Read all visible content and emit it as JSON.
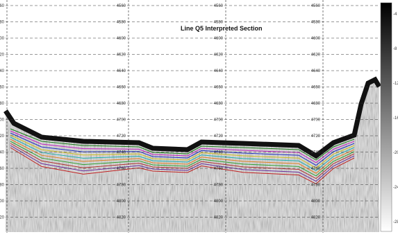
{
  "title": "Line Q5 Interpreted Section",
  "depth_labels": [
    "4560",
    "4580",
    "4600",
    "4620",
    "4640",
    "4660",
    "4680",
    "4700",
    "4720",
    "4740",
    "4760",
    "4780",
    "4800",
    "4820"
  ],
  "colorbar_labels": [
    "-4",
    "-8",
    "-12",
    "-16",
    "-20",
    "-24",
    "-28"
  ]
}
